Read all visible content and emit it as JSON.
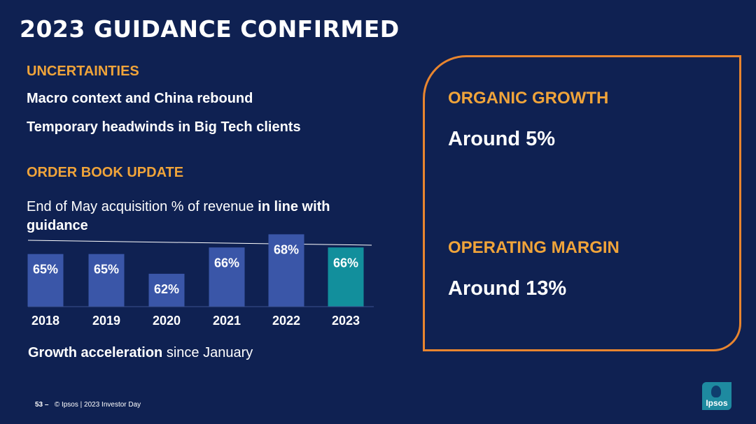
{
  "slide": {
    "title": "2023 GUIDANCE CONFIRMED"
  },
  "uncertainties": {
    "heading": "UNCERTAINTIES",
    "items": [
      "Macro context and China rebound",
      "Temporary headwinds in Big Tech clients"
    ]
  },
  "order_book": {
    "heading": "ORDER BOOK UPDATE",
    "desc_prefix": "End of May acquisition % of revenue ",
    "desc_bold": "in line with guidance"
  },
  "growth": {
    "bold": "Growth acceleration",
    "rest": " since January"
  },
  "guidance": {
    "organic_label": "ORGANIC GROWTH",
    "organic_value": "Around 5%",
    "margin_label": "OPERATING MARGIN",
    "margin_value": "Around 13%"
  },
  "footer": {
    "page": "53 –",
    "text": "© Ipsos | 2023 Investor Day"
  },
  "logo": {
    "text": "Ipsos"
  },
  "colors": {
    "background": "#0f2152",
    "accent_orange": "#f0a43a",
    "panel_border": "#e8852f",
    "bar": "#3a56a8",
    "bar_highlight": "#128f9c"
  },
  "chart_data": {
    "type": "bar",
    "categories": [
      "2018",
      "2019",
      "2020",
      "2021",
      "2022",
      "2023"
    ],
    "values": [
      65,
      65,
      62,
      66,
      68,
      66
    ],
    "data_labels": [
      "65%",
      "65%",
      "62%",
      "66%",
      "68%",
      "66%"
    ],
    "highlight_index": 5,
    "ylim": [
      57,
      69
    ],
    "title": "",
    "xlabel": "",
    "ylabel": "",
    "grid": false,
    "reference_line": true
  }
}
